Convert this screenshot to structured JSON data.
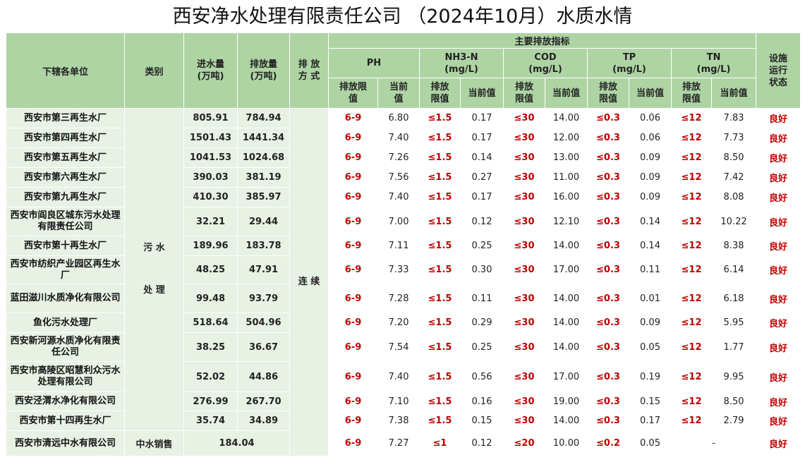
{
  "title": "西安净水处理有限责任公司 （2024年10月）水质水情",
  "headers": {
    "unit": "下辖各单位",
    "category": "类别",
    "inflow": "进水量\n(万吨)",
    "outflow": "排放量\n(万吨)",
    "mode": "排 放\n方 式",
    "main_indicators": "主要排放指标",
    "status": "设施\n运行\n状态",
    "indicators": [
      "PH",
      "NH3-N\n(mg/L)",
      "COD\n(mg/L)",
      "TP\n(mg/L)",
      "TN\n(mg/L)"
    ],
    "limit": "排放限\n值",
    "limit2": "排放\n限值",
    "current": "当前\n值",
    "current2": "当前值"
  },
  "category_wastewater": "污 水\n\n处 理",
  "mode_value": "连 续",
  "rows": [
    {
      "unit": "西安市第三再生水厂",
      "inflow": "805.91",
      "outflow": "784.94",
      "ph_limit": "6-9",
      "ph": "6.80",
      "nh3_limit": "≤1.5",
      "nh3": "0.17",
      "cod_limit": "≤30",
      "cod": "14.00",
      "tp_limit": "≤0.3",
      "tp": "0.06",
      "tn_limit": "≤12",
      "tn": "7.83",
      "status": "良好"
    },
    {
      "unit": "西安市第四再生水厂",
      "inflow": "1501.43",
      "outflow": "1441.34",
      "ph_limit": "6-9",
      "ph": "7.40",
      "nh3_limit": "≤1.5",
      "nh3": "0.17",
      "cod_limit": "≤30",
      "cod": "12.00",
      "tp_limit": "≤0.3",
      "tp": "0.06",
      "tn_limit": "≤12",
      "tn": "7.73",
      "status": "良好"
    },
    {
      "unit": "西安市第五再生水厂",
      "inflow": "1041.53",
      "outflow": "1024.68",
      "ph_limit": "6-9",
      "ph": "7.26",
      "nh3_limit": "≤1.5",
      "nh3": "0.14",
      "cod_limit": "≤30",
      "cod": "13.00",
      "tp_limit": "≤0.3",
      "tp": "0.09",
      "tn_limit": "≤12",
      "tn": "8.50",
      "status": "良好"
    },
    {
      "unit": "西安市第六再生水厂",
      "inflow": "390.03",
      "outflow": "381.19",
      "ph_limit": "6-9",
      "ph": "7.56",
      "nh3_limit": "≤1.5",
      "nh3": "0.27",
      "cod_limit": "≤30",
      "cod": "11.00",
      "tp_limit": "≤0.3",
      "tp": "0.09",
      "tn_limit": "≤12",
      "tn": "7.42",
      "status": "良好"
    },
    {
      "unit": "西安市第九再生水厂",
      "inflow": "410.30",
      "outflow": "385.97",
      "ph_limit": "6-9",
      "ph": "7.40",
      "nh3_limit": "≤1.5",
      "nh3": "0.17",
      "cod_limit": "≤30",
      "cod": "16.00",
      "tp_limit": "≤0.3",
      "tp": "0.09",
      "tn_limit": "≤12",
      "tn": "8.08",
      "status": "良好"
    },
    {
      "unit": "西安市阎良区城东污水处理有限责任公司",
      "inflow": "32.21",
      "outflow": "29.44",
      "ph_limit": "6-9",
      "ph": "7.00",
      "nh3_limit": "≤1.5",
      "nh3": "0.12",
      "cod_limit": "≤30",
      "cod": "12.10",
      "tp_limit": "≤0.3",
      "tp": "0.14",
      "tn_limit": "≤12",
      "tn": "10.22",
      "status": "良好"
    },
    {
      "unit": "西安市第十再生水厂",
      "inflow": "189.96",
      "outflow": "183.78",
      "ph_limit": "6-9",
      "ph": "7.11",
      "nh3_limit": "≤1.5",
      "nh3": "0.25",
      "cod_limit": "≤30",
      "cod": "14.00",
      "tp_limit": "≤0.3",
      "tp": "0.14",
      "tn_limit": "≤12",
      "tn": "8.38",
      "status": "良好"
    },
    {
      "unit": "西安市纺织产业园区再生水厂",
      "inflow": "48.25",
      "outflow": "47.91",
      "ph_limit": "6-9",
      "ph": "7.33",
      "nh3_limit": "≤1.5",
      "nh3": "0.30",
      "cod_limit": "≤30",
      "cod": "17.00",
      "tp_limit": "≤0.3",
      "tp": "0.11",
      "tn_limit": "≤12",
      "tn": "6.14",
      "status": "良好"
    },
    {
      "unit": "蓝田滋川水质净化有限公司",
      "inflow": "99.48",
      "outflow": "93.79",
      "ph_limit": "6-9",
      "ph": "7.28",
      "nh3_limit": "≤1.5",
      "nh3": "0.11",
      "cod_limit": "≤30",
      "cod": "14.00",
      "tp_limit": "≤0.3",
      "tp": "0.01",
      "tn_limit": "≤12",
      "tn": "6.18",
      "status": "良好"
    },
    {
      "unit": "鱼化污水处理厂",
      "inflow": "518.64",
      "outflow": "504.96",
      "ph_limit": "6-9",
      "ph": "7.20",
      "nh3_limit": "≤1.5",
      "nh3": "0.29",
      "cod_limit": "≤30",
      "cod": "14.00",
      "tp_limit": "≤0.3",
      "tp": "0.09",
      "tn_limit": "≤12",
      "tn": "5.95",
      "status": "良好"
    },
    {
      "unit": "西安新河源水质净化有限责任公司",
      "inflow": "38.25",
      "outflow": "36.67",
      "ph_limit": "6-9",
      "ph": "7.54",
      "nh3_limit": "≤1.5",
      "nh3": "0.25",
      "cod_limit": "≤30",
      "cod": "14.00",
      "tp_limit": "≤0.3",
      "tp": "0.05",
      "tn_limit": "≤12",
      "tn": "1.77",
      "status": "良好"
    },
    {
      "unit": "西安市高陵区昭慧利众污水处理有限公司",
      "inflow": "52.02",
      "outflow": "44.86",
      "ph_limit": "6-9",
      "ph": "7.40",
      "nh3_limit": "≤1.5",
      "nh3": "0.56",
      "cod_limit": "≤30",
      "cod": "17.00",
      "tp_limit": "≤0.3",
      "tp": "0.19",
      "tn_limit": "≤12",
      "tn": "9.95",
      "status": "良好"
    },
    {
      "unit": "西安泾渭水净化有限公司",
      "inflow": "276.99",
      "outflow": "267.70",
      "ph_limit": "6-9",
      "ph": "7.10",
      "nh3_limit": "≤1.5",
      "nh3": "0.16",
      "cod_limit": "≤30",
      "cod": "19.00",
      "tp_limit": "≤0.3",
      "tp": "0.15",
      "tn_limit": "≤12",
      "tn": "8.50",
      "status": "良好"
    },
    {
      "unit": "西安市第十四再生水厂",
      "inflow": "35.74",
      "outflow": "34.89",
      "ph_limit": "6-9",
      "ph": "7.38",
      "nh3_limit": "≤1.5",
      "nh3": "0.15",
      "cod_limit": "≤30",
      "cod": "14.00",
      "tp_limit": "≤0.3",
      "tp": "0.17",
      "tn_limit": "≤12",
      "tn": "2.79",
      "status": "良好"
    }
  ],
  "last_row": {
    "unit": "西安市清远中水有限公司",
    "category": "中水销售",
    "volume": "184.04",
    "ph_limit": "6-9",
    "ph": "7.27",
    "nh3_limit": "≤1",
    "nh3": "0.12",
    "cod_limit": "≤20",
    "cod": "10.00",
    "tp_limit": "≤0.2",
    "tp": "0.05",
    "tn": "-",
    "status": "良好"
  }
}
